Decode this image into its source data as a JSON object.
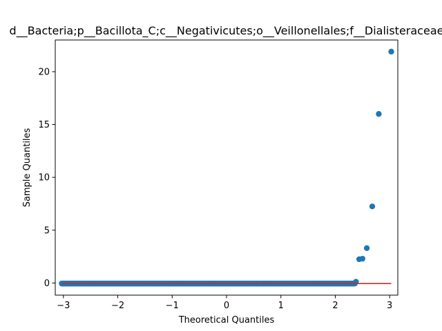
{
  "chart_data": {
    "type": "scatter",
    "title": "d__Bacteria;p__Bacillota_C;c__Negativicutes;o__Veillonellales;f__Dialisteraceae",
    "xlabel": "Theoretical Quantiles",
    "ylabel": "Sample Quantiles",
    "xlim": [
      -3.15,
      3.15
    ],
    "ylim": [
      -1.15,
      23.0
    ],
    "xticks": [
      -3,
      -2,
      -1,
      0,
      1,
      2,
      3
    ],
    "yticks": [
      0,
      5,
      10,
      15,
      20
    ],
    "grid": false,
    "colors": {
      "points": "#1f77b4",
      "reference_line": "#d62728"
    },
    "reference_line": {
      "x": [
        -3.03,
        3.03
      ],
      "y": [
        -0.05,
        -0.05
      ]
    },
    "series": [
      {
        "outliers": [
          {
            "x": 2.38,
            "y": 0.12
          },
          {
            "x": 2.44,
            "y": 2.25
          },
          {
            "x": 2.5,
            "y": 2.3
          },
          {
            "x": 2.58,
            "y": 3.3
          },
          {
            "x": 2.68,
            "y": 7.25
          },
          {
            "x": 2.8,
            "y": 16.0
          },
          {
            "x": 3.03,
            "y": 21.9
          }
        ],
        "baseline": {
          "x_start": -3.03,
          "x_end": 2.36,
          "y": -0.05,
          "count": 400
        }
      }
    ]
  }
}
